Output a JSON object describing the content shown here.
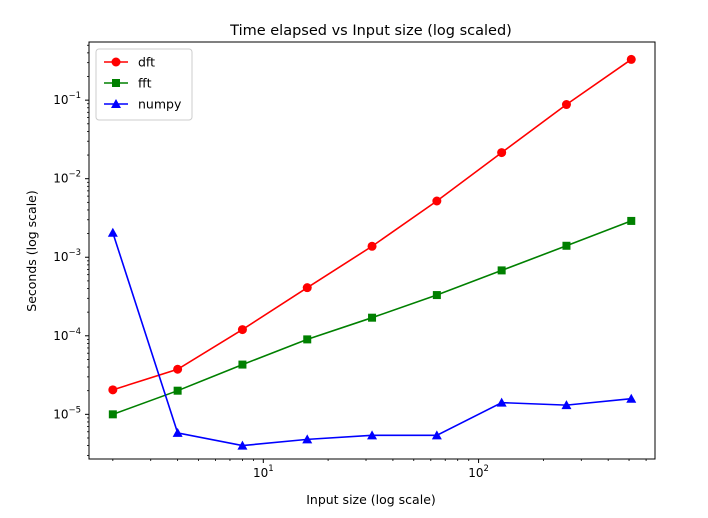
{
  "chart_data": {
    "type": "line",
    "title": "Time elapsed vs Input size (log scaled)",
    "xlabel": "Input size (log scale)",
    "ylabel": "Seconds (log scale)",
    "xscale": "log",
    "yscale": "log",
    "xlim": [
      1.55,
      660
    ],
    "ylim": [
      2.7e-06,
      0.55
    ],
    "grid": false,
    "legend_position": "top-left",
    "x": [
      2,
      4,
      8,
      16,
      32,
      64,
      128,
      256,
      512
    ],
    "x_major_ticks": [
      {
        "value": 10,
        "base": "10",
        "exp": "1"
      },
      {
        "value": 100,
        "base": "10",
        "exp": "2"
      }
    ],
    "y_major_ticks": [
      {
        "value": 1e-05,
        "base": "10",
        "exp": "−5"
      },
      {
        "value": 0.0001,
        "base": "10",
        "exp": "−4"
      },
      {
        "value": 0.001,
        "base": "10",
        "exp": "−3"
      },
      {
        "value": 0.01,
        "base": "10",
        "exp": "−2"
      },
      {
        "value": 0.1,
        "base": "10",
        "exp": "−1"
      }
    ],
    "series": [
      {
        "name": "dft",
        "color": "#ff0000",
        "marker": "circle",
        "values": [
          2.05e-05,
          3.75e-05,
          0.00012,
          0.00041,
          0.00138,
          0.0052,
          0.0215,
          0.088,
          0.33
        ]
      },
      {
        "name": "fft",
        "color": "#008000",
        "marker": "square",
        "values": [
          1e-05,
          2e-05,
          4.3e-05,
          9e-05,
          0.00017,
          0.00033,
          0.00068,
          0.0014,
          0.0029
        ]
      },
      {
        "name": "numpy",
        "color": "#0000ff",
        "marker": "triangle",
        "values": [
          0.00205,
          5.8e-06,
          4e-06,
          4.8e-06,
          5.4e-06,
          5.4e-06,
          1.41e-05,
          1.31e-05,
          1.58e-05
        ]
      }
    ]
  }
}
